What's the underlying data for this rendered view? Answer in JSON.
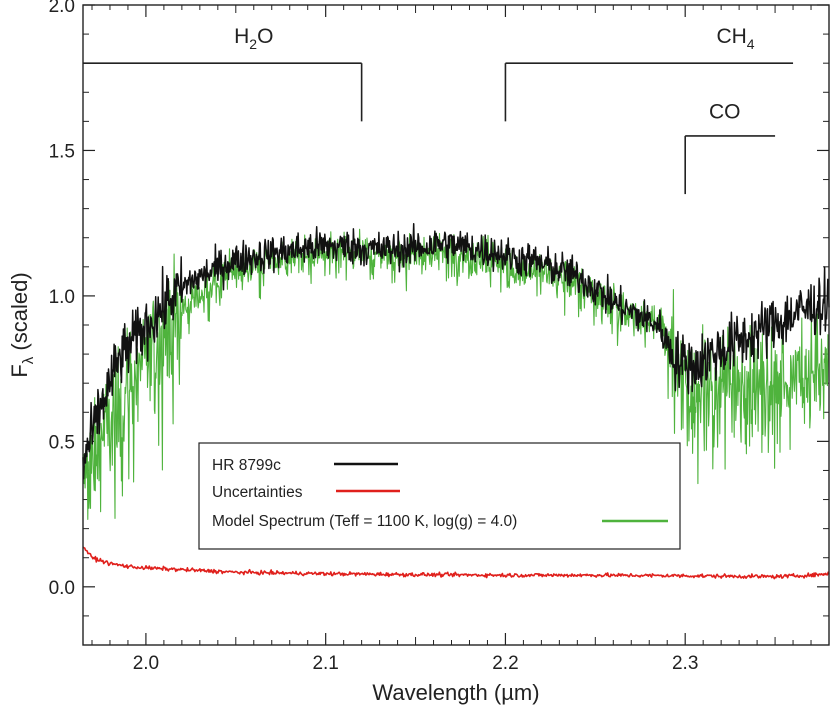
{
  "chart_data": {
    "type": "line",
    "title": "",
    "xlabel": "Wavelength (µm)",
    "ylabel_main": "F",
    "ylabel_sub": "λ",
    "ylabel_rest": " (scaled)",
    "xlim": [
      1.965,
      2.38
    ],
    "ylim": [
      -0.2,
      2.0
    ],
    "x_ticks": [
      2.0,
      2.1,
      2.2,
      2.3
    ],
    "x_tick_labels": [
      "2.0",
      "2.1",
      "2.2",
      "2.3"
    ],
    "y_ticks": [
      0.0,
      0.5,
      1.0,
      1.5,
      2.0
    ],
    "y_tick_labels": [
      "0.0",
      "0.5",
      "1.0",
      "1.5",
      "2.0"
    ],
    "legend_position": "lower-center",
    "series": [
      {
        "name": "HR 8799c",
        "color": "#111111",
        "x": [
          1.965,
          1.975,
          1.985,
          1.995,
          2.005,
          2.015,
          2.025,
          2.035,
          2.045,
          2.055,
          2.065,
          2.075,
          2.085,
          2.095,
          2.105,
          2.115,
          2.125,
          2.135,
          2.145,
          2.155,
          2.165,
          2.175,
          2.185,
          2.195,
          2.205,
          2.215,
          2.225,
          2.235,
          2.245,
          2.255,
          2.265,
          2.275,
          2.285,
          2.295,
          2.305,
          2.315,
          2.325,
          2.335,
          2.345,
          2.355,
          2.365,
          2.375,
          2.38
        ],
        "y": [
          0.42,
          0.62,
          0.78,
          0.86,
          0.93,
          1.0,
          1.05,
          1.08,
          1.11,
          1.13,
          1.14,
          1.15,
          1.16,
          1.17,
          1.17,
          1.17,
          1.16,
          1.16,
          1.16,
          1.17,
          1.18,
          1.17,
          1.16,
          1.15,
          1.13,
          1.12,
          1.1,
          1.08,
          1.05,
          1.0,
          0.96,
          0.93,
          0.9,
          0.78,
          0.76,
          0.8,
          0.83,
          0.86,
          0.89,
          0.92,
          0.95,
          0.97,
          0.98
        ]
      },
      {
        "name": "Uncertainties",
        "color": "#e0201c",
        "x": [
          1.965,
          1.97,
          1.98,
          1.99,
          2.0,
          2.05,
          2.1,
          2.15,
          2.2,
          2.25,
          2.3,
          2.35,
          2.37,
          2.38
        ],
        "y": [
          0.14,
          0.1,
          0.08,
          0.07,
          0.065,
          0.05,
          0.045,
          0.042,
          0.04,
          0.04,
          0.038,
          0.035,
          0.04,
          0.045
        ]
      },
      {
        "name": "Model Spectrum (Teff = 1100 K, log(g) = 4.0)",
        "color": "#4fb33d",
        "x": [
          1.965,
          1.975,
          1.985,
          1.995,
          2.005,
          2.015,
          2.025,
          2.035,
          2.045,
          2.055,
          2.065,
          2.075,
          2.085,
          2.095,
          2.105,
          2.115,
          2.125,
          2.135,
          2.145,
          2.155,
          2.165,
          2.175,
          2.185,
          2.195,
          2.205,
          2.215,
          2.225,
          2.235,
          2.245,
          2.255,
          2.265,
          2.275,
          2.285,
          2.295,
          2.305,
          2.315,
          2.325,
          2.335,
          2.345,
          2.355,
          2.365,
          2.375,
          2.38
        ],
        "y": [
          0.36,
          0.52,
          0.65,
          0.75,
          0.84,
          0.92,
          0.99,
          1.04,
          1.08,
          1.1,
          1.12,
          1.13,
          1.14,
          1.15,
          1.16,
          1.16,
          1.15,
          1.15,
          1.15,
          1.15,
          1.16,
          1.15,
          1.14,
          1.13,
          1.11,
          1.1,
          1.08,
          1.06,
          1.03,
          0.99,
          0.96,
          0.94,
          0.93,
          0.76,
          0.7,
          0.7,
          0.71,
          0.72,
          0.73,
          0.74,
          0.75,
          0.76,
          0.77
        ]
      }
    ],
    "annotations": [
      {
        "id": "h2o",
        "label": "H",
        "sub": "2",
        "rest": "O",
        "x_start": 1.965,
        "x_end": 2.12,
        "y_bar": 1.8,
        "y_tick_end": 1.6,
        "tick_side": "end",
        "label_x": 2.06,
        "label_y": 1.87
      },
      {
        "id": "ch4",
        "label": "CH",
        "sub": "4",
        "rest": "",
        "x_start": 2.2,
        "x_end": 2.36,
        "y_bar": 1.8,
        "y_tick_end": 1.6,
        "tick_side": "start",
        "label_x": 2.328,
        "label_y": 1.87
      },
      {
        "id": "co",
        "label": "CO",
        "sub": "",
        "rest": "",
        "x_start": 2.3,
        "x_end": 2.35,
        "y_bar": 1.55,
        "y_tick_end": 1.35,
        "tick_side": "start",
        "label_x": 2.322,
        "label_y": 1.61
      }
    ]
  }
}
